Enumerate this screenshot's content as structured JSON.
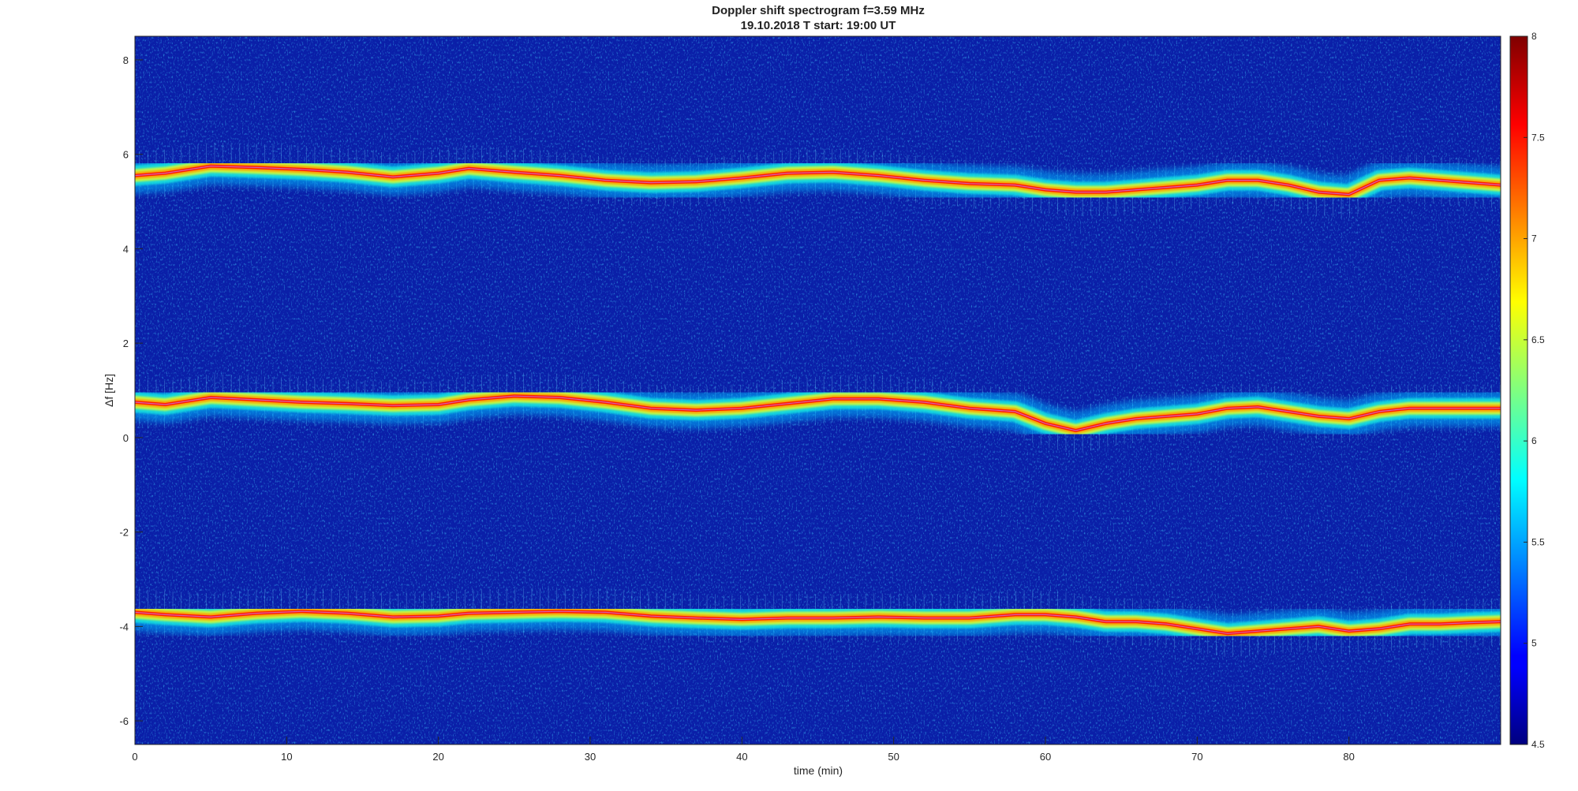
{
  "chart_data": {
    "type": "heatmap",
    "title": "Doppler shift spectrogram f=3.59 MHz",
    "subtitle": "19.10.2018   T start: 19:00 UT",
    "xlabel": "time (min)",
    "ylabel": "Δf [Hz]",
    "xlim": [
      0,
      90
    ],
    "ylim": [
      -6.5,
      8.5
    ],
    "x_ticks": [
      0,
      10,
      20,
      30,
      40,
      50,
      60,
      70,
      80
    ],
    "y_ticks": [
      -6,
      -4,
      -2,
      0,
      2,
      4,
      6,
      8
    ],
    "colorbar": {
      "colormap": "jet",
      "range": [
        4.5,
        8
      ],
      "ticks": [
        4.5,
        5,
        5.5,
        6,
        6.5,
        7,
        7.5,
        8
      ],
      "tick_labels": [
        "4.5",
        "5",
        "5.5",
        "6",
        "6.5",
        "7",
        "7.5",
        "8"
      ]
    },
    "background_color": "#0a1fa8",
    "series": [
      {
        "x": [
          0,
          2,
          5,
          8,
          11,
          14,
          17,
          20,
          22,
          25,
          28,
          31,
          34,
          37,
          40,
          43,
          46,
          49,
          52,
          55,
          58,
          60,
          62,
          64,
          66,
          68,
          70,
          72,
          74,
          76,
          78,
          80,
          82,
          84,
          86,
          88,
          90
        ],
        "values": [
          5.55,
          5.6,
          5.75,
          5.72,
          5.68,
          5.62,
          5.52,
          5.6,
          5.7,
          5.62,
          5.55,
          5.45,
          5.4,
          5.42,
          5.5,
          5.6,
          5.62,
          5.55,
          5.45,
          5.38,
          5.35,
          5.25,
          5.2,
          5.2,
          5.25,
          5.3,
          5.35,
          5.45,
          5.45,
          5.35,
          5.2,
          5.15,
          5.45,
          5.5,
          5.45,
          5.4,
          5.35
        ]
      },
      {
        "x": [
          0,
          2,
          5,
          8,
          11,
          14,
          17,
          20,
          22,
          25,
          28,
          31,
          34,
          37,
          40,
          43,
          46,
          49,
          52,
          55,
          58,
          60,
          62,
          64,
          66,
          68,
          70,
          72,
          74,
          76,
          78,
          80,
          82,
          84,
          86,
          88,
          90
        ],
        "values": [
          0.75,
          0.7,
          0.85,
          0.8,
          0.75,
          0.72,
          0.68,
          0.7,
          0.8,
          0.88,
          0.85,
          0.75,
          0.62,
          0.58,
          0.62,
          0.72,
          0.82,
          0.82,
          0.75,
          0.62,
          0.55,
          0.3,
          0.15,
          0.3,
          0.4,
          0.45,
          0.5,
          0.62,
          0.65,
          0.55,
          0.45,
          0.4,
          0.55,
          0.62,
          0.62,
          0.62,
          0.62
        ]
      },
      {
        "x": [
          0,
          2,
          5,
          8,
          11,
          14,
          17,
          20,
          22,
          25,
          28,
          31,
          34,
          37,
          40,
          43,
          46,
          49,
          52,
          55,
          58,
          60,
          62,
          64,
          66,
          68,
          70,
          72,
          74,
          76,
          78,
          80,
          82,
          84,
          86,
          88,
          90
        ],
        "values": [
          -3.7,
          -3.75,
          -3.8,
          -3.72,
          -3.68,
          -3.72,
          -3.8,
          -3.78,
          -3.72,
          -3.7,
          -3.68,
          -3.7,
          -3.78,
          -3.82,
          -3.85,
          -3.82,
          -3.82,
          -3.8,
          -3.82,
          -3.82,
          -3.75,
          -3.75,
          -3.8,
          -3.9,
          -3.9,
          -3.95,
          -4.05,
          -4.15,
          -4.1,
          -4.05,
          -4.0,
          -4.1,
          -4.05,
          -3.95,
          -3.95,
          -3.92,
          -3.9
        ]
      }
    ]
  }
}
